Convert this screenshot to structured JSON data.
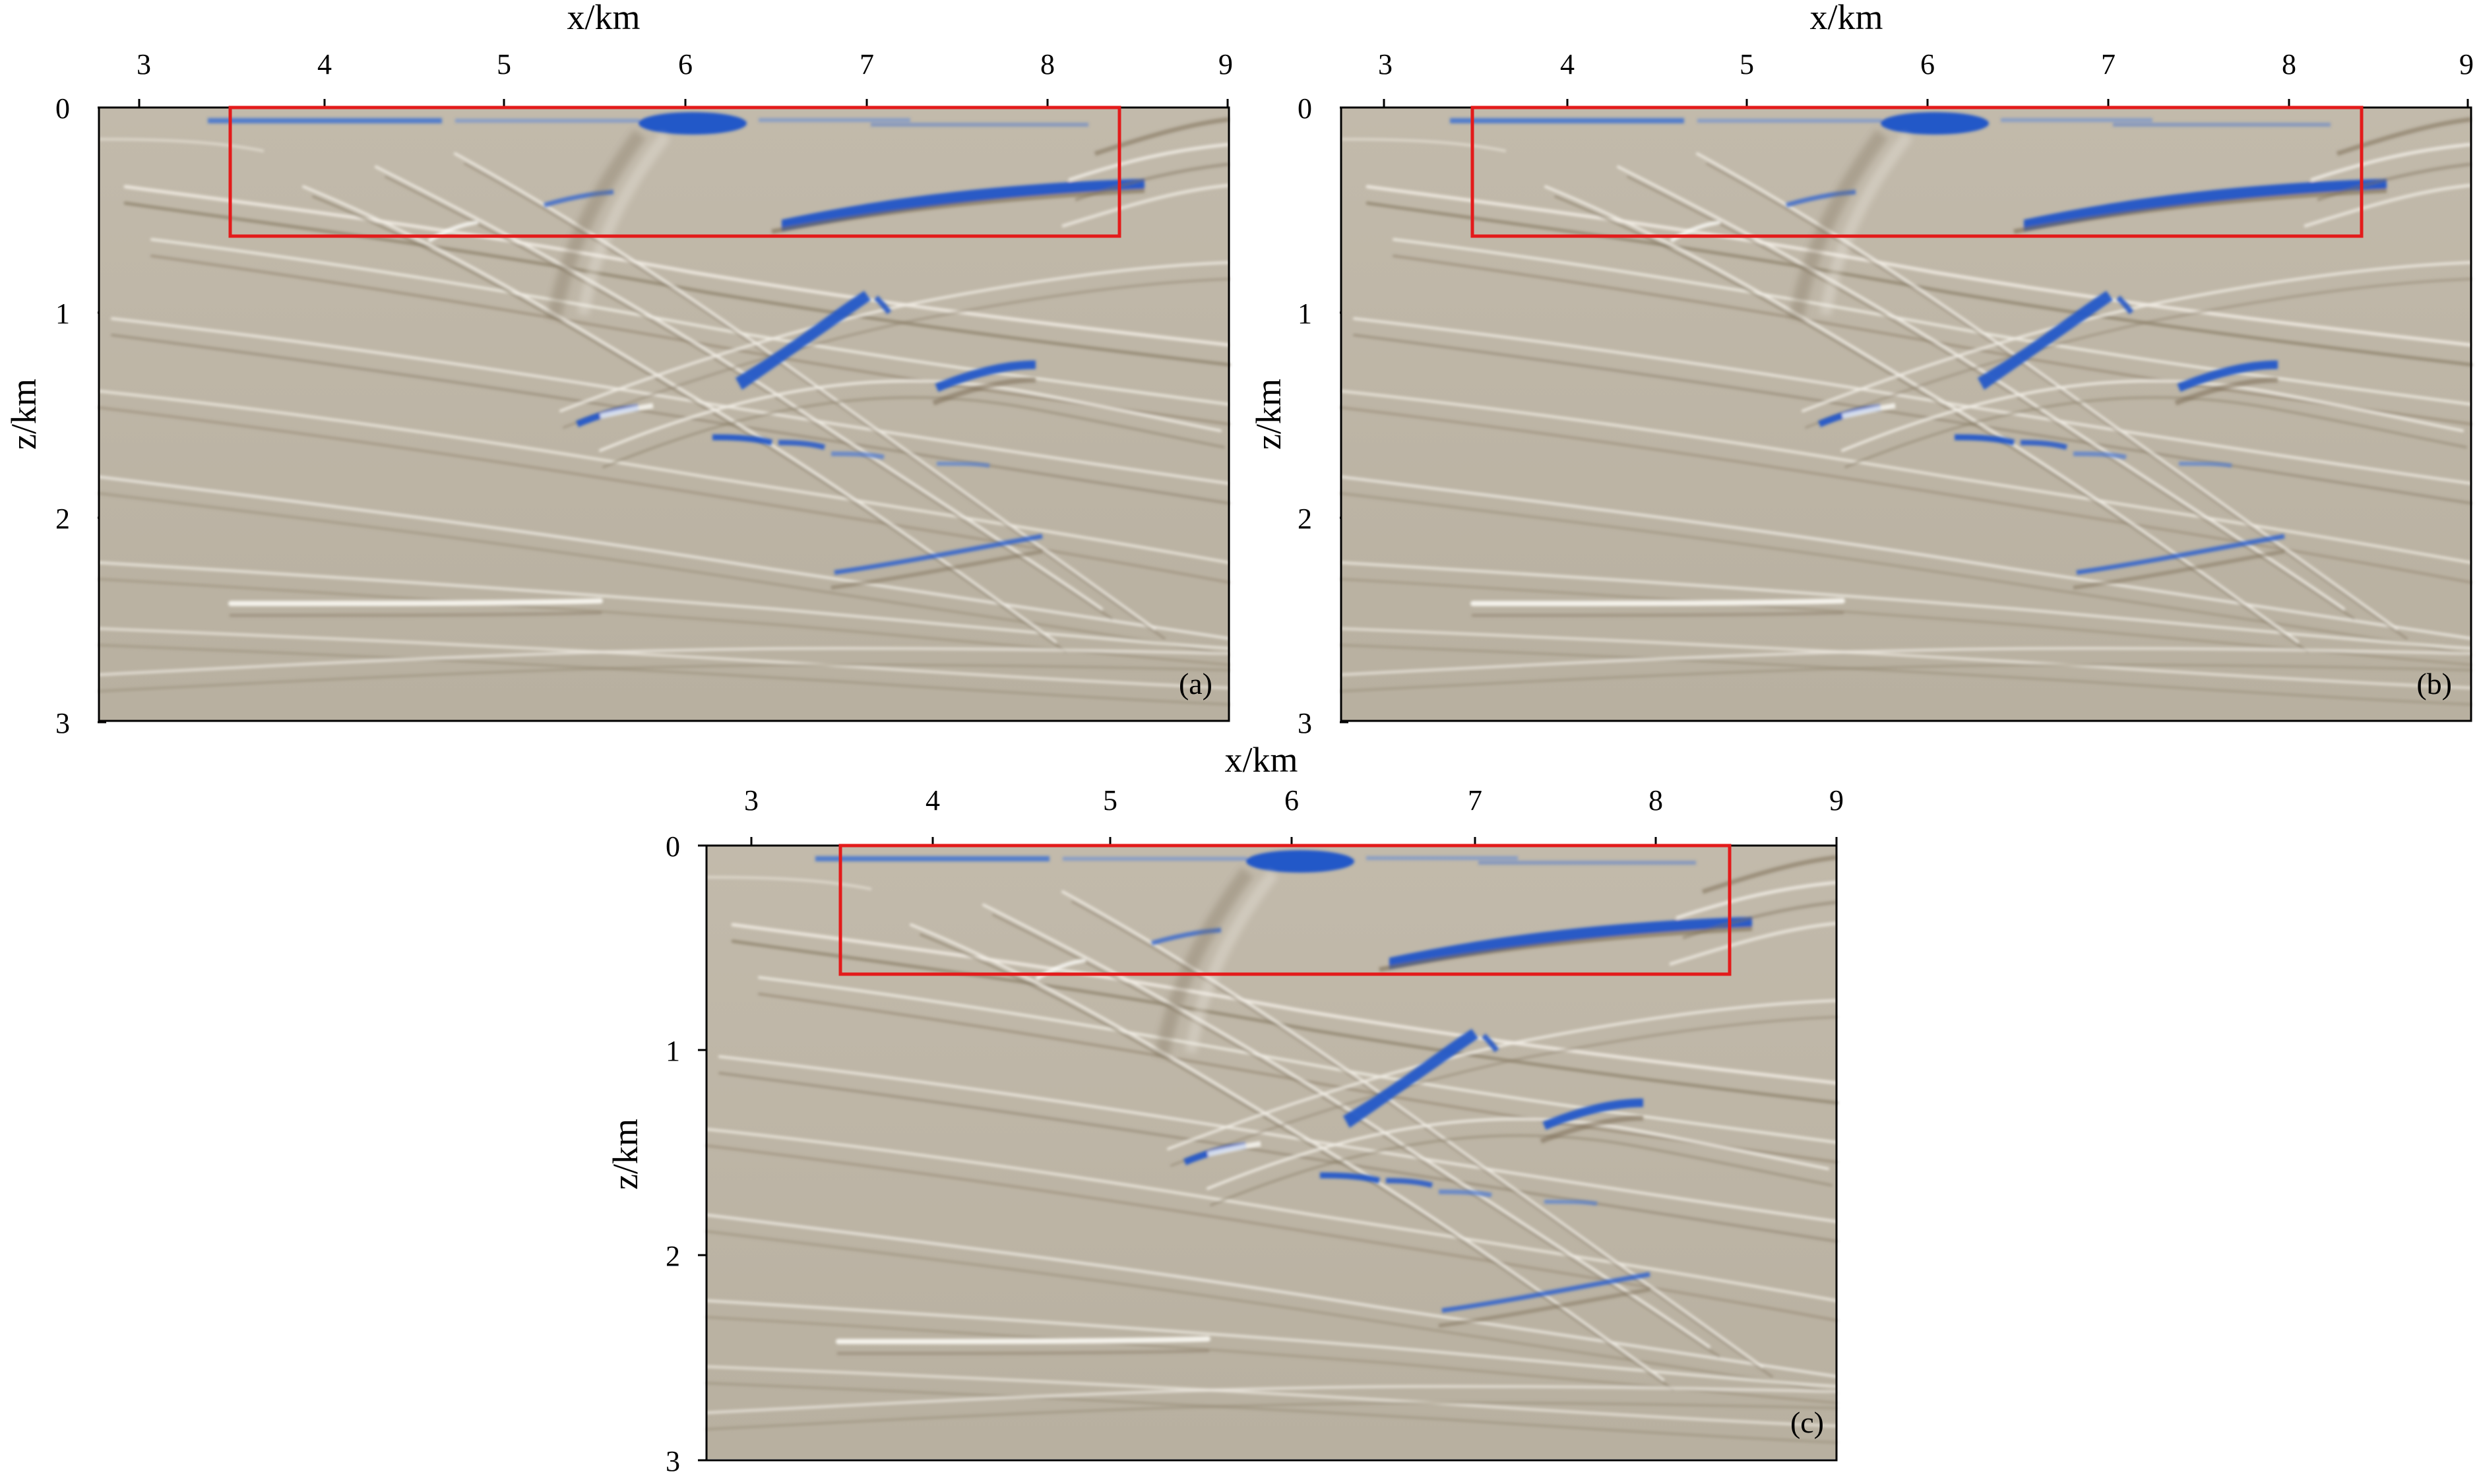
{
  "figure": {
    "panels": [
      {
        "id": "a",
        "label": "(a)",
        "x_axis_title": "x/km",
        "y_axis_title": "z/km",
        "x_ticks": [
          "3",
          "4",
          "5",
          "6",
          "7",
          "8",
          "9"
        ],
        "y_ticks": [
          "0",
          "1",
          "2",
          "3"
        ]
      },
      {
        "id": "b",
        "label": "(b)",
        "x_axis_title": "x/km",
        "y_axis_title": "z/km",
        "x_ticks": [
          "3",
          "4",
          "5",
          "6",
          "7",
          "8",
          "9"
        ],
        "y_ticks": [
          "0",
          "1",
          "2",
          "3"
        ]
      },
      {
        "id": "c",
        "label": "(c)",
        "x_axis_title": "x/km",
        "y_axis_title": "z/km",
        "x_ticks": [
          "3",
          "4",
          "5",
          "6",
          "7",
          "8",
          "9"
        ],
        "y_ticks": [
          "0",
          "1",
          "2",
          "3"
        ]
      }
    ],
    "colors": {
      "background": "#bdb5a6",
      "positive": "#1f57c8",
      "negative": "#8a7d67",
      "highlight_box": "#e31b1b"
    },
    "highlight_box": {
      "x_range_km": [
        3.5,
        8.4
      ],
      "z_range_km": [
        0.0,
        0.63
      ]
    },
    "axis_ranges": {
      "x_km": [
        2.75,
        9.0
      ],
      "z_km": [
        0.0,
        3.0
      ]
    }
  }
}
